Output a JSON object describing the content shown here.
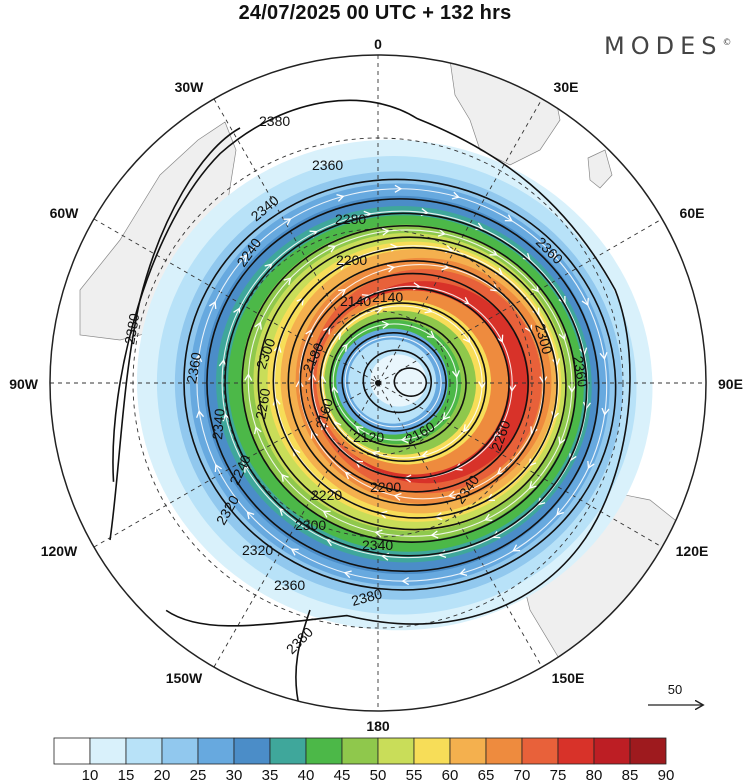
{
  "header": {
    "title": "24/07/2025  00 UTC  + 132 hrs",
    "brand": "MODES",
    "brand_mark": "©"
  },
  "map": {
    "projection": "south-polar-stereographic",
    "longitude_labels": {
      "top": "0",
      "bottom": "180",
      "left": "90W",
      "right": "90E",
      "upper_left_30": "30W",
      "upper_left_60": "60W",
      "upper_right_30": "30E",
      "upper_right_60": "60E",
      "lower_left_120": "120W",
      "lower_left_150": "150W",
      "lower_right_120": "120E",
      "lower_right_150": "150E"
    },
    "contour_labels": {
      "c1": "2380",
      "c2": "2360",
      "c3": "2340",
      "c4": "2320",
      "c5": "2300",
      "c6": "2280",
      "c7": "2260",
      "c8": "2240",
      "c9": "2220",
      "c10": "2200",
      "c11": "2180",
      "c12": "2160",
      "c13": "2140",
      "c14": "2120",
      "c15": "2380",
      "c16": "2380",
      "c17": "2360",
      "c18": "2360",
      "c19": "2300",
      "c20": "2260",
      "c21": "2200",
      "c22": "2160",
      "c23": "2120",
      "c24": "2340",
      "c25": "2360",
      "c26": "2320",
      "c27": "2300",
      "c28": "2220",
      "c29": "2240",
      "c30": "2260",
      "c31": "2340",
      "c32": "2320",
      "c33": "2380",
      "c34": "2340",
      "c35": "2360",
      "c36": "2300",
      "c37": "2260",
      "c38": "2140"
    },
    "vector_reference": "50"
  },
  "colorbar": {
    "ticks": [
      "10",
      "15",
      "20",
      "25",
      "30",
      "35",
      "40",
      "45",
      "50",
      "55",
      "60",
      "65",
      "70",
      "75",
      "80",
      "85",
      "90"
    ],
    "colors": [
      "#ffffff",
      "#d9f1fb",
      "#b8e2f8",
      "#91c8ee",
      "#67a9df",
      "#4b8dc8",
      "#3fa79b",
      "#4cb848",
      "#8fc84c",
      "#c9dd59",
      "#f7dd58",
      "#f4b04e",
      "#ee8b3e",
      "#e8613a",
      "#d83229",
      "#bd1e24",
      "#9e1a1e"
    ]
  }
}
